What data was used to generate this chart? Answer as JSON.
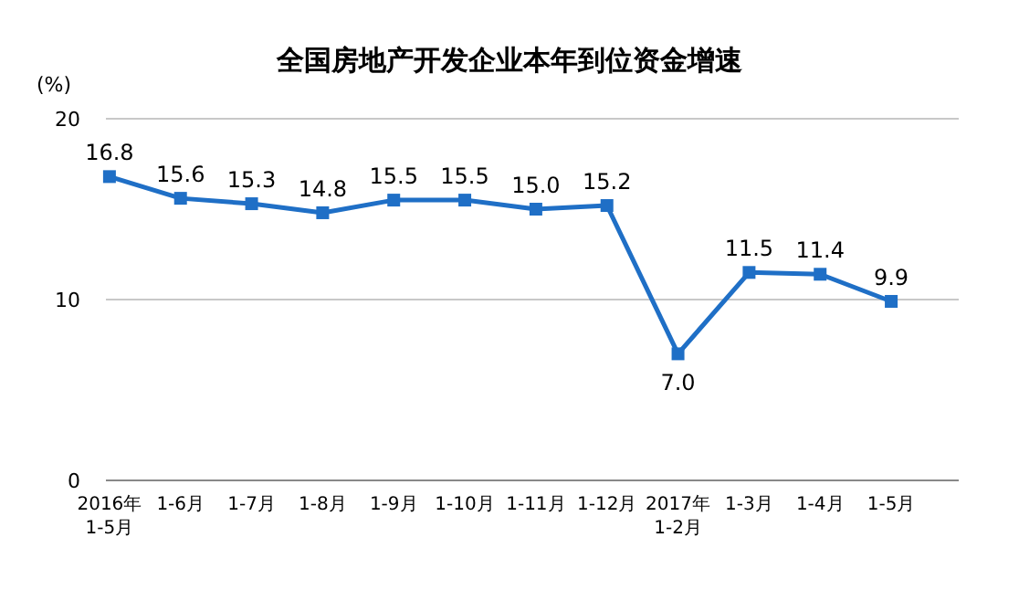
{
  "chart_data": {
    "type": "line",
    "title": "全国房地产开发企业本年到位资金增速",
    "ylabel": "(%)",
    "categories": [
      "2016年\n1-5月",
      "1-6月",
      "1-7月",
      "1-8月",
      "1-9月",
      "1-10月",
      "1-11月",
      "1-12月",
      "2017年\n1-2月",
      "1-3月",
      "1-4月",
      "1-5月"
    ],
    "values": [
      16.8,
      15.6,
      15.3,
      14.8,
      15.5,
      15.5,
      15.0,
      15.2,
      7.0,
      11.5,
      11.4,
      9.9
    ],
    "value_labels": [
      "16.8",
      "15.6",
      "15.3",
      "14.8",
      "15.5",
      "15.5",
      "15.0",
      "15.2",
      "7.0",
      "11.5",
      "11.4",
      "9.9"
    ],
    "color": "#1f6fc6",
    "ylim": [
      0,
      20
    ],
    "yticks": [
      0,
      10,
      20
    ],
    "grid": "y",
    "marker": "square",
    "line_style": "solid"
  }
}
